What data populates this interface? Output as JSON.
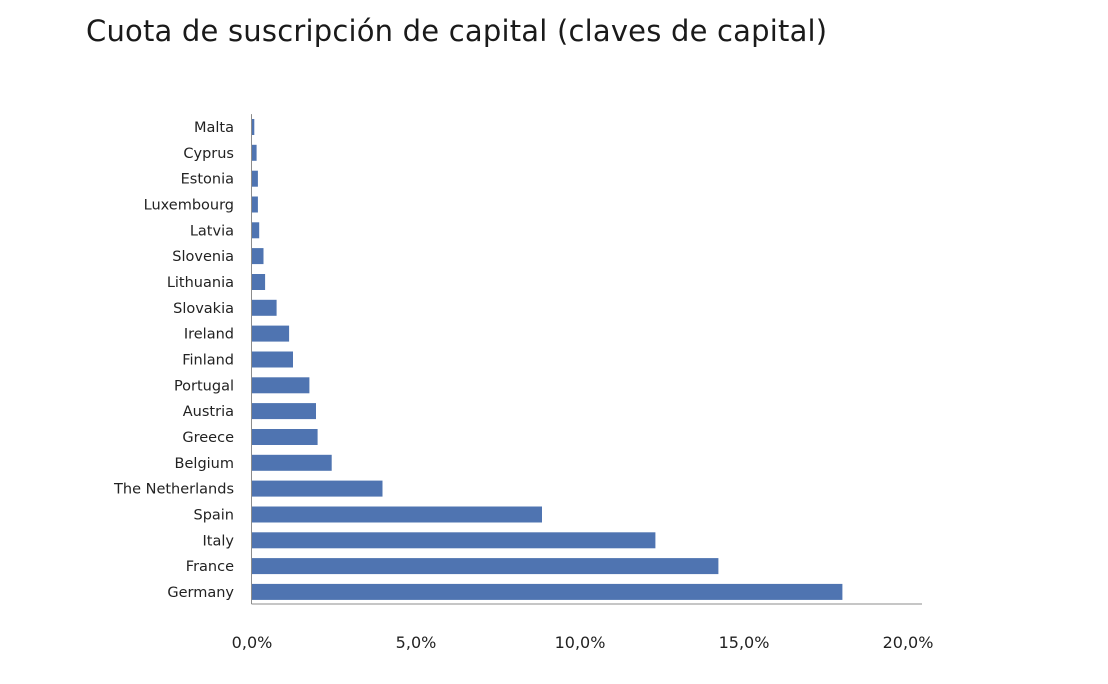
{
  "page": {
    "title": "Cuota de suscripción de capital (claves de capital)"
  },
  "chart_data": {
    "type": "bar",
    "orientation": "horizontal",
    "title": "",
    "xlabel": "",
    "ylabel": "",
    "xlim": [
      0,
      20
    ],
    "x_ticks": [
      0,
      5,
      10,
      15,
      20
    ],
    "x_tick_labels": [
      "0,0%",
      "5,0%",
      "10,0%",
      "15,0%",
      "20,0%"
    ],
    "grid": false,
    "legend": "none",
    "bar_color": "#4f74b1",
    "categories": [
      "Malta",
      "Cyprus",
      "Estonia",
      "Luxembourg",
      "Latvia",
      "Slovenia",
      "Lithuania",
      "Slovakia",
      "Ireland",
      "Finland",
      "Portugal",
      "Austria",
      "Greece",
      "Belgium",
      "The Netherlands",
      "Spain",
      "Italy",
      "France",
      "Germany"
    ],
    "values": [
      0.07,
      0.14,
      0.18,
      0.18,
      0.22,
      0.35,
      0.4,
      0.75,
      1.13,
      1.25,
      1.75,
      1.95,
      2.0,
      2.43,
      3.98,
      8.84,
      12.3,
      14.22,
      18.0
    ]
  }
}
